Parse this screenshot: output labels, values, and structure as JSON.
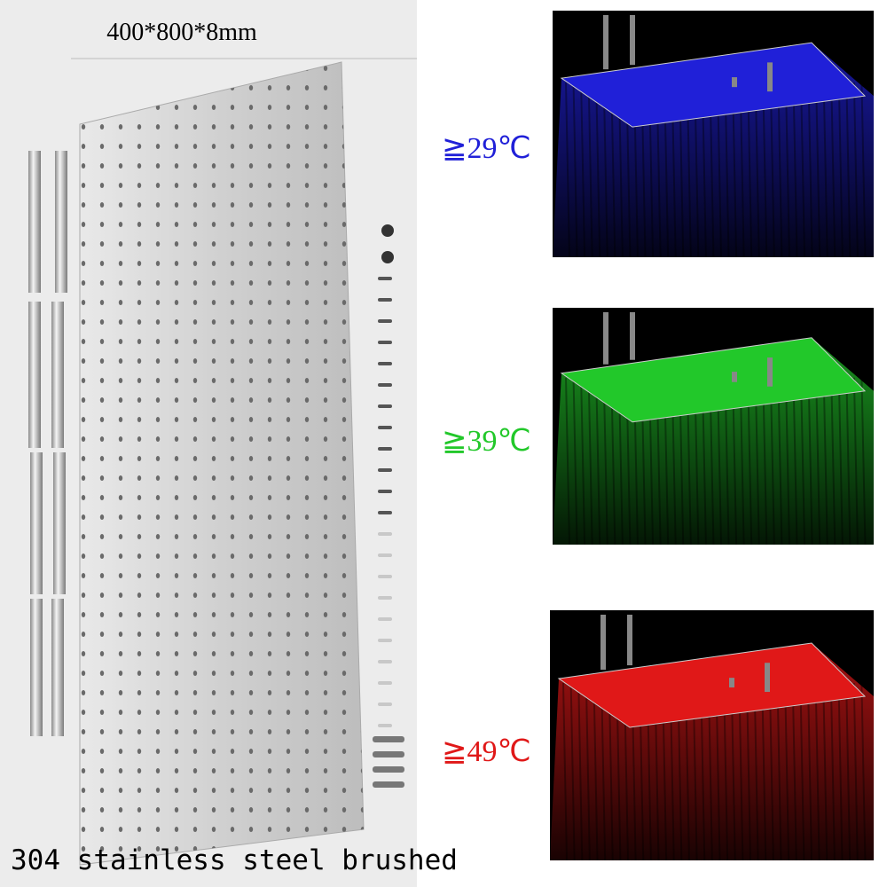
{
  "header": {
    "dimensions": "400*800*8mm"
  },
  "temperatures": [
    {
      "label": "≧29℃",
      "color": "#2020d8"
    },
    {
      "label": "≧39℃",
      "color": "#22c82a"
    },
    {
      "label": "≧49℃",
      "color": "#e01818"
    }
  ],
  "footer": {
    "material": "304 stainless steel brushed"
  }
}
